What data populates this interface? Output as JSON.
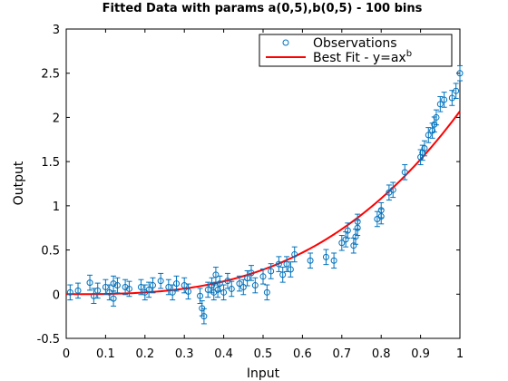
{
  "chart_data": {
    "type": "scatter",
    "title": "Fitted Data with params a(0,5),b(0,5) - 100 bins",
    "xlabel": "Input",
    "ylabel": "Output",
    "xlim": [
      0,
      1
    ],
    "ylim": [
      -0.5,
      3
    ],
    "xticks": [
      0,
      0.1,
      0.2,
      0.3,
      0.4,
      0.5,
      0.6,
      0.7,
      0.8,
      0.9,
      1
    ],
    "xtick_labels": [
      "0",
      "0.1",
      "0.2",
      "0.3",
      "0.4",
      "0.5",
      "0.6",
      "0.7",
      "0.8",
      "0.9",
      "1"
    ],
    "yticks": [
      -0.5,
      0,
      0.5,
      1,
      1.5,
      2,
      2.5,
      3
    ],
    "ytick_labels": [
      "-0.5",
      "0",
      "0.5",
      "1",
      "1.5",
      "2",
      "2.5",
      "3"
    ],
    "grid": false,
    "legend_position": "top-right",
    "colors": {
      "observations": "#0072bd",
      "fit": "#ff0000"
    },
    "series": [
      {
        "name": "Observations",
        "kind": "errorbar",
        "error": 0.085,
        "x": [
          0.01,
          0.03,
          0.06,
          0.07,
          0.08,
          0.1,
          0.11,
          0.12,
          0.12,
          0.13,
          0.15,
          0.16,
          0.19,
          0.2,
          0.21,
          0.22,
          0.24,
          0.26,
          0.27,
          0.28,
          0.3,
          0.31,
          0.34,
          0.345,
          0.35,
          0.36,
          0.37,
          0.375,
          0.38,
          0.385,
          0.39,
          0.4,
          0.41,
          0.42,
          0.44,
          0.45,
          0.46,
          0.47,
          0.48,
          0.5,
          0.51,
          0.52,
          0.54,
          0.55,
          0.56,
          0.57,
          0.58,
          0.62,
          0.66,
          0.68,
          0.7,
          0.71,
          0.715,
          0.73,
          0.735,
          0.74,
          0.74,
          0.79,
          0.8,
          0.8,
          0.82,
          0.83,
          0.86,
          0.9,
          0.905,
          0.91,
          0.92,
          0.93,
          0.935,
          0.94,
          0.95,
          0.96,
          0.98,
          0.99,
          1.0
        ],
        "y": [
          0.02,
          0.04,
          0.13,
          -0.02,
          0.04,
          0.08,
          0.02,
          -0.05,
          0.12,
          0.1,
          0.08,
          0.06,
          0.08,
          0.02,
          0.05,
          0.1,
          0.15,
          0.08,
          0.02,
          0.12,
          0.1,
          0.03,
          -0.02,
          -0.16,
          -0.25,
          0.05,
          0.1,
          0.02,
          0.22,
          0.05,
          0.12,
          0.02,
          0.15,
          0.06,
          0.12,
          0.08,
          0.18,
          0.24,
          0.1,
          0.2,
          0.02,
          0.26,
          0.34,
          0.22,
          0.34,
          0.28,
          0.45,
          0.38,
          0.42,
          0.38,
          0.58,
          0.62,
          0.72,
          0.55,
          0.65,
          0.75,
          0.82,
          0.85,
          0.95,
          0.88,
          1.15,
          1.18,
          1.38,
          1.55,
          1.6,
          1.65,
          1.8,
          1.85,
          1.92,
          2.0,
          2.15,
          2.2,
          2.22,
          2.3,
          2.5
        ]
      },
      {
        "name": "Best Fit - y=ax",
        "name_superscript": "b",
        "kind": "line",
        "a": 2.07,
        "b": 2.9
      }
    ]
  }
}
